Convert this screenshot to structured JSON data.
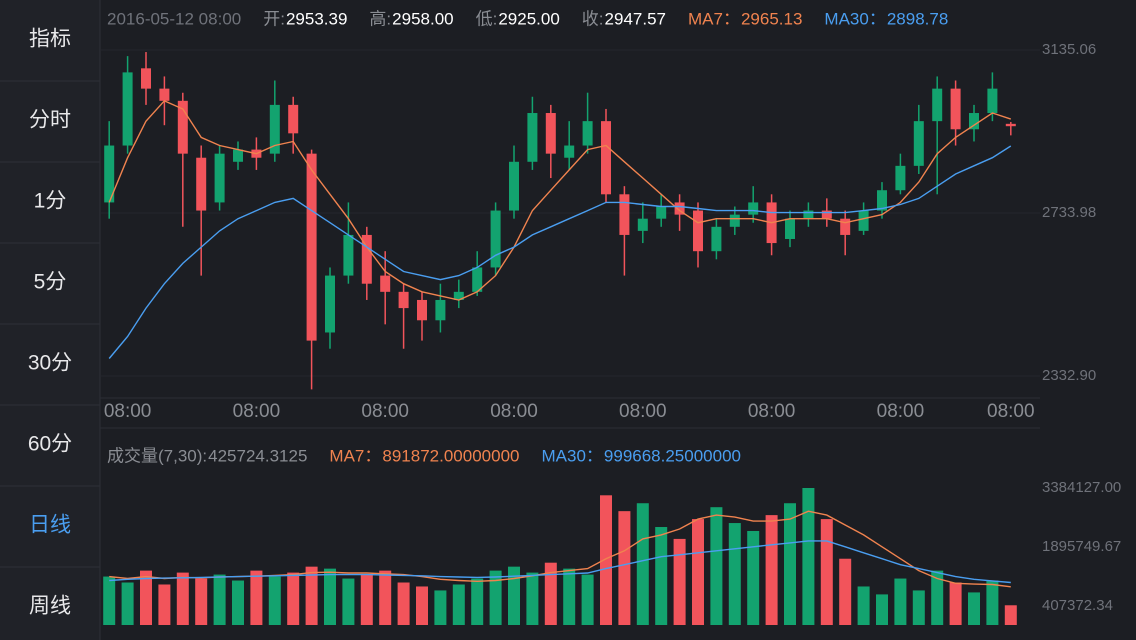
{
  "sidebar": {
    "items": [
      "指标",
      "分时",
      "1分",
      "5分",
      "30分",
      "60分",
      "日线",
      "周线"
    ],
    "selected": 6
  },
  "chart_data": [
    {
      "type": "candlestick",
      "date": "2016-05-12 08:00",
      "readout": [
        {
          "name": "开:",
          "value": 2953.39
        },
        {
          "name": "高:",
          "value": 2958,
          "label": "2958.00"
        },
        {
          "name": "低:",
          "value": 2925,
          "label": "2925.00"
        },
        {
          "name": "收:",
          "value": 2947.57
        },
        {
          "name": "MA7：",
          "value": 2965.13,
          "color": "#f0834f"
        },
        {
          "name": "MA30：",
          "value": 2898.78,
          "color": "#4a9ef0"
        }
      ],
      "up_color": "#13a36f",
      "down_color": "#f2545b",
      "ohlc": [
        [
          2760,
          2960,
          2720,
          2900
        ],
        [
          2900,
          3120,
          2880,
          3080
        ],
        [
          3090,
          3130,
          3000,
          3040
        ],
        [
          3040,
          3070,
          2950,
          3010
        ],
        [
          3010,
          3030,
          2700,
          2880
        ],
        [
          2870,
          2900,
          2580,
          2740
        ],
        [
          2760,
          2900,
          2740,
          2880
        ],
        [
          2860,
          2910,
          2840,
          2890
        ],
        [
          2890,
          2920,
          2840,
          2870
        ],
        [
          2880,
          3060,
          2860,
          3000
        ],
        [
          3000,
          3020,
          2880,
          2930
        ],
        [
          2880,
          2890,
          2300,
          2420
        ],
        [
          2440,
          2600,
          2400,
          2580
        ],
        [
          2580,
          2760,
          2560,
          2680
        ],
        [
          2680,
          2700,
          2520,
          2560
        ],
        [
          2580,
          2640,
          2460,
          2540
        ],
        [
          2540,
          2560,
          2400,
          2500
        ],
        [
          2520,
          2540,
          2420,
          2470
        ],
        [
          2470,
          2560,
          2440,
          2520
        ],
        [
          2520,
          2570,
          2500,
          2540
        ],
        [
          2540,
          2640,
          2530,
          2600
        ],
        [
          2600,
          2760,
          2580,
          2740
        ],
        [
          2740,
          2900,
          2720,
          2860
        ],
        [
          2860,
          3020,
          2840,
          2980
        ],
        [
          2980,
          3000,
          2820,
          2880
        ],
        [
          2870,
          2960,
          2840,
          2900
        ],
        [
          2900,
          3030,
          2880,
          2960
        ],
        [
          2960,
          2990,
          2760,
          2780
        ],
        [
          2780,
          2800,
          2580,
          2680
        ],
        [
          2690,
          2760,
          2660,
          2720
        ],
        [
          2720,
          2780,
          2700,
          2750
        ],
        [
          2760,
          2780,
          2690,
          2730
        ],
        [
          2740,
          2760,
          2600,
          2640
        ],
        [
          2640,
          2720,
          2620,
          2700
        ],
        [
          2700,
          2750,
          2680,
          2730
        ],
        [
          2730,
          2800,
          2710,
          2760
        ],
        [
          2760,
          2780,
          2630,
          2660
        ],
        [
          2670,
          2740,
          2650,
          2720
        ],
        [
          2720,
          2760,
          2700,
          2740
        ],
        [
          2740,
          2770,
          2700,
          2720
        ],
        [
          2720,
          2740,
          2630,
          2680
        ],
        [
          2690,
          2760,
          2680,
          2740
        ],
        [
          2740,
          2810,
          2720,
          2790
        ],
        [
          2790,
          2880,
          2780,
          2850
        ],
        [
          2850,
          3000,
          2830,
          2960
        ],
        [
          2960,
          3070,
          2780,
          3040
        ],
        [
          3040,
          3060,
          2900,
          2940
        ],
        [
          2940,
          3000,
          2910,
          2980
        ],
        [
          2980,
          3080,
          2960,
          3040
        ],
        [
          2953.39,
          2958,
          2925,
          2947.57
        ]
      ],
      "series": [
        {
          "name": "MA7",
          "color": "#f0834f",
          "values": [
            2760,
            2870,
            2960,
            3010,
            2990,
            2920,
            2900,
            2890,
            2880,
            2900,
            2910,
            2840,
            2780,
            2720,
            2650,
            2590,
            2560,
            2540,
            2530,
            2520,
            2540,
            2580,
            2650,
            2740,
            2790,
            2840,
            2890,
            2900,
            2860,
            2820,
            2780,
            2740,
            2710,
            2720,
            2720,
            2720,
            2710,
            2720,
            2720,
            2720,
            2710,
            2720,
            2730,
            2760,
            2810,
            2880,
            2920,
            2950,
            2980,
            2965.13
          ]
        },
        {
          "name": "MA30",
          "color": "#4a9ef0",
          "values": [
            2376,
            2430,
            2500,
            2560,
            2610,
            2650,
            2690,
            2720,
            2740,
            2760,
            2770,
            2740,
            2710,
            2680,
            2650,
            2620,
            2590,
            2580,
            2570,
            2580,
            2600,
            2630,
            2650,
            2680,
            2700,
            2720,
            2740,
            2760,
            2760,
            2755,
            2750,
            2750,
            2745,
            2740,
            2740,
            2740,
            2735,
            2735,
            2735,
            2735,
            2735,
            2740,
            2745,
            2755,
            2770,
            2800,
            2830,
            2850,
            2870,
            2898.78
          ]
        }
      ],
      "ylim": [
        2332.9,
        3135.06
      ],
      "yticks": [
        3135.06,
        2733.98,
        {
          "value": 2332.9,
          "label": "2332.90"
        }
      ],
      "xticks": [
        {
          "value": 1,
          "label": "08:00"
        },
        {
          "value": 8,
          "label": "08:00"
        },
        {
          "value": 15,
          "label": "08:00"
        },
        {
          "value": 22,
          "label": "08:00"
        },
        {
          "value": 29,
          "label": "08:00"
        },
        {
          "value": 36,
          "label": "08:00"
        },
        {
          "value": 43,
          "label": "08:00"
        },
        {
          "value": 49,
          "label": "08:00"
        }
      ],
      "grid": true
    },
    {
      "type": "bar",
      "readout": [
        {
          "name": "成交量(7,30):",
          "value": 425724.3125,
          "color": "#8a8d93"
        },
        {
          "name": "MA7：",
          "value": 891872,
          "label": "891872.00000000",
          "color": "#f0834f"
        },
        {
          "name": "MA30：",
          "value": 999668.25,
          "label": "999668.25000000",
          "color": "#4a9ef0"
        }
      ],
      "values": [
        1150000,
        1000000,
        1300000,
        950000,
        1250000,
        1100000,
        1200000,
        1050000,
        1300000,
        1150000,
        1250000,
        1400000,
        1350000,
        1100000,
        1200000,
        1300000,
        1000000,
        900000,
        800000,
        950000,
        1100000,
        1300000,
        1400000,
        1250000,
        1500000,
        1350000,
        1200000,
        3200000,
        2800000,
        3000000,
        2400000,
        2100000,
        2600000,
        2900000,
        2500000,
        2300000,
        2700000,
        3000000,
        3384127,
        2600000,
        1600000,
        900000,
        700000,
        1100000,
        800000,
        1300000,
        1000000,
        750000,
        1050000,
        425724.3125
      ],
      "series": [
        {
          "name": "MA7",
          "color": "#f0834f",
          "values": [
            1150000,
            1100000,
            1150000,
            1100000,
            1130000,
            1120000,
            1140000,
            1150000,
            1160000,
            1180000,
            1200000,
            1250000,
            1260000,
            1240000,
            1240000,
            1220000,
            1200000,
            1150000,
            1080000,
            1050000,
            1030000,
            1050000,
            1100000,
            1170000,
            1250000,
            1300000,
            1350000,
            1600000,
            1800000,
            2100000,
            2200000,
            2350000,
            2600000,
            2700000,
            2650000,
            2550000,
            2550000,
            2600000,
            2800000,
            2700000,
            2450000,
            2200000,
            1900000,
            1600000,
            1300000,
            1100000,
            980000,
            960000,
            950000,
            891872
          ]
        },
        {
          "name": "MA30",
          "color": "#4a9ef0",
          "values": [
            1050000,
            1080000,
            1100000,
            1110000,
            1120000,
            1130000,
            1140000,
            1150000,
            1160000,
            1170000,
            1180000,
            1190000,
            1200000,
            1200000,
            1200000,
            1190000,
            1180000,
            1170000,
            1150000,
            1140000,
            1130000,
            1140000,
            1160000,
            1180000,
            1200000,
            1220000,
            1240000,
            1350000,
            1450000,
            1550000,
            1650000,
            1700000,
            1750000,
            1800000,
            1850000,
            1900000,
            1950000,
            2000000,
            2050000,
            2050000,
            1900000,
            1750000,
            1600000,
            1450000,
            1350000,
            1250000,
            1150000,
            1080000,
            1040000,
            999668.25
          ]
        }
      ],
      "ylim": [
        407372.34,
        3384127
      ],
      "yticks": [
        {
          "value": 3384127,
          "label": "3384127.00"
        },
        1895749.67,
        407372.34
      ]
    }
  ]
}
